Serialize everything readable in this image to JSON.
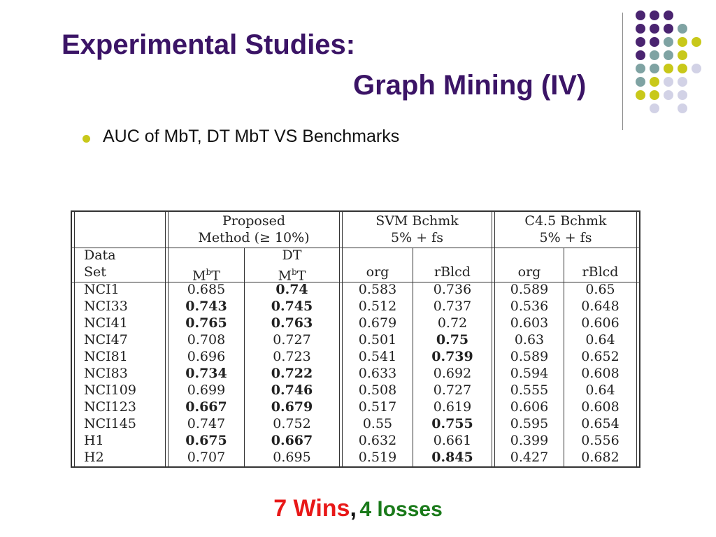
{
  "slide": {
    "title_line1": "Experimental Studies:",
    "title_line2": "Graph Mining (IV)",
    "bullet": "AUC of MbT, DT MbT VS Benchmarks",
    "colors": {
      "title": "#3b1466",
      "bullet": "#c8c81a",
      "wins": "#e81818",
      "losses": "#1a7a1a",
      "dot_purple": "#4a2470",
      "dot_teal": "#7fa3a3",
      "dot_olive": "#c8c81a",
      "dot_lavender": "#d2d2e6"
    }
  },
  "table": {
    "groups": {
      "proposed_line1": "Proposed",
      "proposed_line2": "Method (≥ 10%)",
      "svm_line1": "SVM  Bchmk",
      "svm_line2": "5% + fs",
      "c45_line1": "C4.5  Bchmk",
      "c45_line2": "5% + fs"
    },
    "dataset_line1": "Data",
    "dataset_line2": "Set",
    "dt_label": "DT",
    "mbt_m": "M",
    "mbt_b": "b",
    "mbt_t": "T",
    "col_org": "org",
    "col_rblcd": "rBlcd",
    "rows": [
      {
        "name": "NCI1",
        "mbt": "0.685",
        "dtmbt": "0.74",
        "svm_org": "0.583",
        "svm_rblcd": "0.736",
        "c45_org": "0.589",
        "c45_rblcd": "0.65"
      },
      {
        "name": "NCI33",
        "mbt": "0.743",
        "dtmbt": "0.745",
        "svm_org": "0.512",
        "svm_rblcd": "0.737",
        "c45_org": "0.536",
        "c45_rblcd": "0.648"
      },
      {
        "name": "NCI41",
        "mbt": "0.765",
        "dtmbt": "0.763",
        "svm_org": "0.679",
        "svm_rblcd": "0.72",
        "c45_org": "0.603",
        "c45_rblcd": "0.606"
      },
      {
        "name": "NCI47",
        "mbt": "0.708",
        "dtmbt": "0.727",
        "svm_org": "0.501",
        "svm_rblcd": "0.75",
        "c45_org": "0.63",
        "c45_rblcd": "0.64"
      },
      {
        "name": "NCI81",
        "mbt": "0.696",
        "dtmbt": "0.723",
        "svm_org": "0.541",
        "svm_rblcd": "0.739",
        "c45_org": "0.589",
        "c45_rblcd": "0.652"
      },
      {
        "name": "NCI83",
        "mbt": "0.734",
        "dtmbt": "0.722",
        "svm_org": "0.633",
        "svm_rblcd": "0.692",
        "c45_org": "0.594",
        "c45_rblcd": "0.608"
      },
      {
        "name": "NCI109",
        "mbt": "0.699",
        "dtmbt": "0.746",
        "svm_org": "0.508",
        "svm_rblcd": "0.727",
        "c45_org": "0.555",
        "c45_rblcd": "0.64"
      },
      {
        "name": "NCI123",
        "mbt": "0.667",
        "dtmbt": "0.679",
        "svm_org": "0.517",
        "svm_rblcd": "0.619",
        "c45_org": "0.606",
        "c45_rblcd": "0.608"
      },
      {
        "name": "NCI145",
        "mbt": "0.747",
        "dtmbt": "0.752",
        "svm_org": "0.55",
        "svm_rblcd": "0.755",
        "c45_org": "0.595",
        "c45_rblcd": "0.654"
      },
      {
        "name": "H1",
        "mbt": "0.675",
        "dtmbt": "0.667",
        "svm_org": "0.632",
        "svm_rblcd": "0.661",
        "c45_org": "0.399",
        "c45_rblcd": "0.556"
      },
      {
        "name": "H2",
        "mbt": "0.707",
        "dtmbt": "0.695",
        "svm_org": "0.519",
        "svm_rblcd": "0.845",
        "c45_org": "0.427",
        "c45_rblcd": "0.682"
      }
    ],
    "bold_cells": [
      [
        "NCI1",
        "dtmbt"
      ],
      [
        "NCI33",
        "mbt"
      ],
      [
        "NCI33",
        "dtmbt"
      ],
      [
        "NCI41",
        "mbt"
      ],
      [
        "NCI41",
        "dtmbt"
      ],
      [
        "NCI47",
        "svm_rblcd"
      ],
      [
        "NCI81",
        "svm_rblcd"
      ],
      [
        "NCI83",
        "mbt"
      ],
      [
        "NCI83",
        "dtmbt"
      ],
      [
        "NCI109",
        "dtmbt"
      ],
      [
        "NCI123",
        "mbt"
      ],
      [
        "NCI123",
        "dtmbt"
      ],
      [
        "NCI145",
        "svm_rblcd"
      ],
      [
        "H1",
        "mbt"
      ],
      [
        "H1",
        "dtmbt"
      ],
      [
        "H2",
        "svm_rblcd"
      ]
    ]
  },
  "summary": {
    "wins": "7 Wins",
    "comma": ",",
    "losses": "4 losses"
  }
}
